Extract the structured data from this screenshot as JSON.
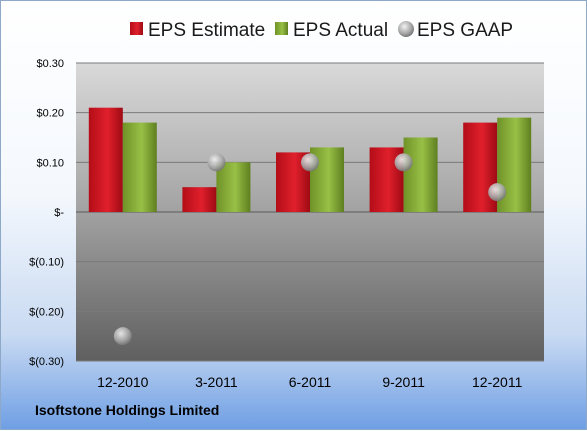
{
  "company_name": "Isoftstone Holdings Limited",
  "colors": {
    "estimate": "#d4121f",
    "actual": "#8cb33a",
    "gaap": "#a8a8a8",
    "plot_top": "#d9d9d9",
    "plot_bottom": "#5f5f5f"
  },
  "chart_data": {
    "type": "bar",
    "categories": [
      "12-2010",
      "3-2011",
      "6-2011",
      "9-2011",
      "12-2011"
    ],
    "series": [
      {
        "name": "EPS Estimate",
        "kind": "bar",
        "values": [
          0.21,
          0.05,
          0.12,
          0.13,
          0.18
        ]
      },
      {
        "name": "EPS Actual",
        "kind": "bar",
        "values": [
          0.18,
          0.1,
          0.13,
          0.15,
          0.19
        ]
      },
      {
        "name": "EPS GAAP",
        "kind": "marker",
        "values": [
          -0.25,
          0.1,
          0.1,
          0.1,
          0.04
        ]
      }
    ],
    "ylim": [
      -0.3,
      0.3
    ],
    "yticks": [
      0.3,
      0.2,
      0.1,
      0,
      -0.1,
      -0.2,
      -0.3
    ],
    "ytick_labels": [
      "$0.30",
      "$0.20",
      "$0.10",
      "$-",
      "$(0.10)",
      "$(0.20)",
      "$(0.30)"
    ],
    "legend_position": "top",
    "grid": true
  }
}
